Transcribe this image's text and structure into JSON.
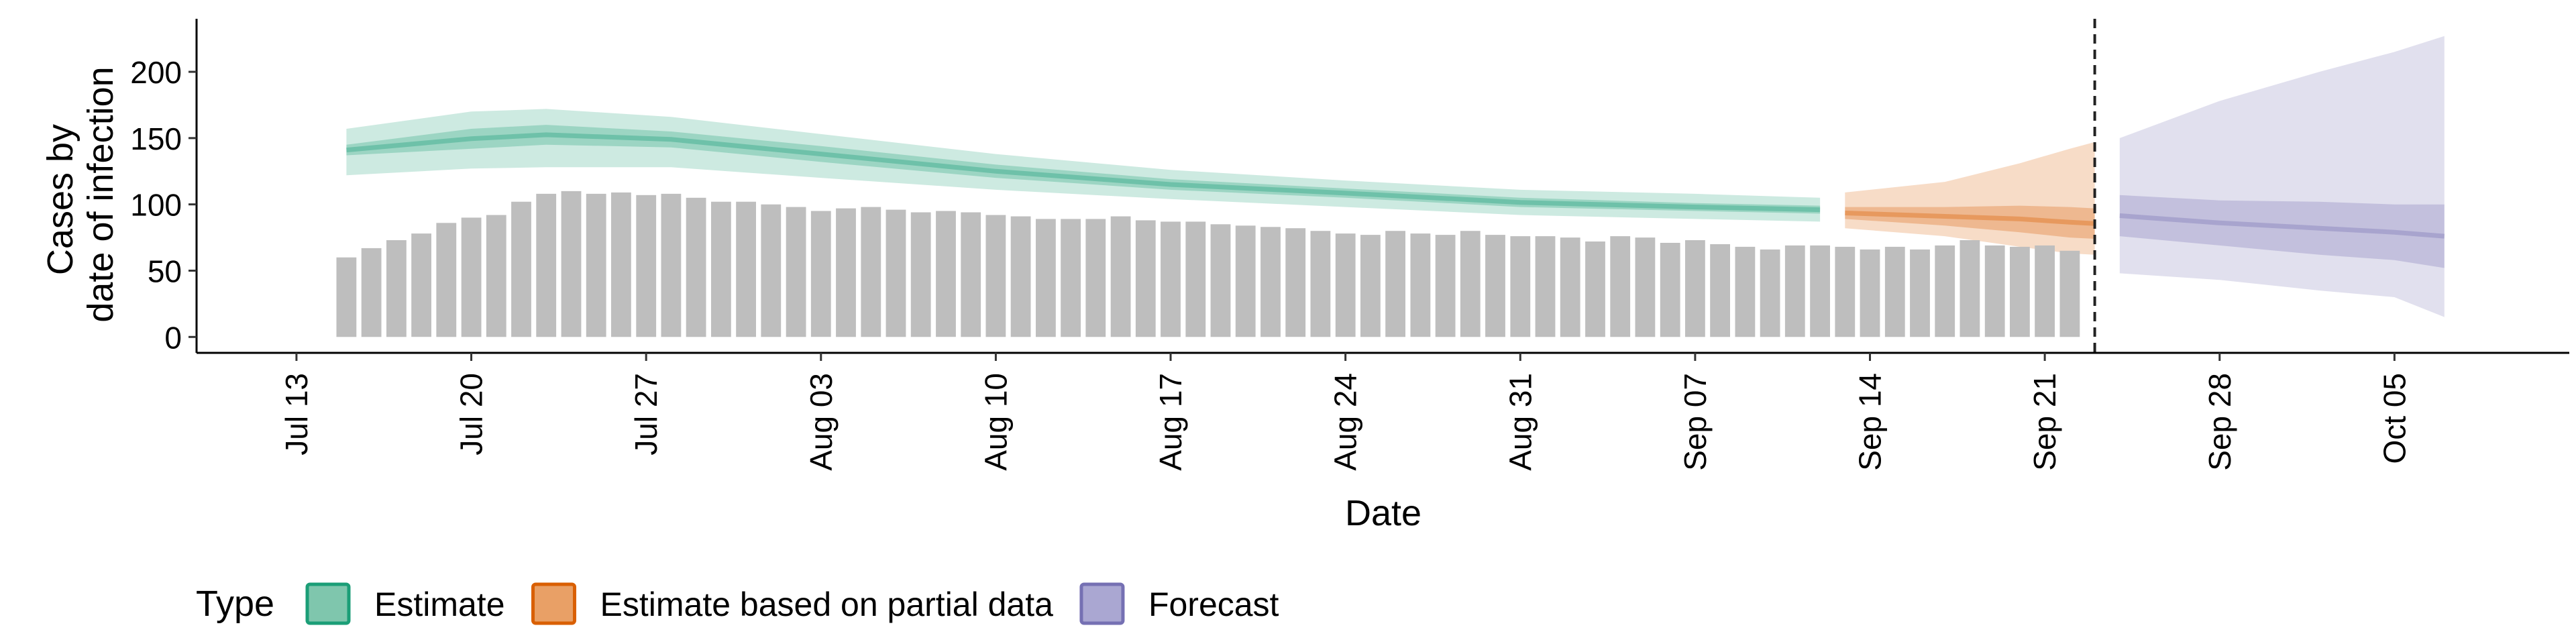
{
  "chart_data": {
    "type": "bar",
    "title": "",
    "xlabel": "Date",
    "ylabel_lines": [
      "Cases by",
      "date of infection"
    ],
    "y_ticks": [
      0,
      50,
      100,
      150,
      200
    ],
    "ylim": [
      -12,
      240
    ],
    "x_range": [
      "2020-07-09",
      "2020-10-12"
    ],
    "x_tick_labels": [
      {
        "date": "2020-07-13",
        "label": "Jul 13"
      },
      {
        "date": "2020-07-20",
        "label": "Jul 20"
      },
      {
        "date": "2020-07-27",
        "label": "Jul 27"
      },
      {
        "date": "2020-08-03",
        "label": "Aug 03"
      },
      {
        "date": "2020-08-10",
        "label": "Aug 10"
      },
      {
        "date": "2020-08-17",
        "label": "Aug 17"
      },
      {
        "date": "2020-08-24",
        "label": "Aug 24"
      },
      {
        "date": "2020-08-31",
        "label": "Aug 31"
      },
      {
        "date": "2020-09-07",
        "label": "Sep 07"
      },
      {
        "date": "2020-09-14",
        "label": "Sep 14"
      },
      {
        "date": "2020-09-21",
        "label": "Sep 21"
      },
      {
        "date": "2020-09-28",
        "label": "Sep 28"
      },
      {
        "date": "2020-10-05",
        "label": "Oct 05"
      }
    ],
    "bars": {
      "first_date": "2020-07-15",
      "color": "#bebebe",
      "values": [
        60,
        67,
        73,
        78,
        86,
        90,
        92,
        102,
        108,
        110,
        108,
        109,
        107,
        108,
        105,
        102,
        102,
        100,
        98,
        95,
        97,
        98,
        96,
        94,
        95,
        94,
        92,
        91,
        89,
        89,
        89,
        91,
        88,
        87,
        87,
        85,
        84,
        83,
        82,
        80,
        78,
        77,
        80,
        78,
        77,
        80,
        77,
        76,
        76,
        75,
        72,
        76,
        75,
        71,
        73,
        70,
        68,
        66,
        69,
        69,
        68,
        66,
        68,
        66,
        69,
        73,
        69,
        68,
        69,
        65
      ]
    },
    "bands": [
      {
        "type": "Estimate",
        "color": "#1b9e77",
        "points": [
          [
            "2020-07-15",
            122,
            137,
            145,
            157
          ],
          [
            "2020-07-20",
            127,
            142,
            157,
            170
          ],
          [
            "2020-07-23",
            128,
            145,
            160,
            172
          ],
          [
            "2020-07-28",
            128,
            143,
            155,
            166
          ],
          [
            "2020-08-03",
            120,
            132,
            144,
            153
          ],
          [
            "2020-08-10",
            111,
            120,
            130,
            138
          ],
          [
            "2020-08-17",
            104,
            111,
            119,
            126
          ],
          [
            "2020-08-24",
            98,
            105,
            112,
            118
          ],
          [
            "2020-08-31",
            92,
            98,
            105,
            111
          ],
          [
            "2020-09-07",
            89,
            95,
            101,
            108
          ],
          [
            "2020-09-12",
            87,
            93,
            99,
            105
          ]
        ]
      },
      {
        "type": "Estimate based on partial data",
        "color": "#d95f02",
        "points": [
          [
            "2020-09-13",
            82,
            89,
            98,
            109
          ],
          [
            "2020-09-17",
            76,
            84,
            98,
            117
          ],
          [
            "2020-09-20",
            68,
            79,
            99,
            131
          ],
          [
            "2020-09-22",
            63,
            75,
            98,
            142
          ],
          [
            "2020-09-23",
            62,
            74,
            97,
            147
          ]
        ]
      },
      {
        "type": "Forecast",
        "color": "#7570b3",
        "points": [
          [
            "2020-09-24",
            48,
            76,
            107,
            150
          ],
          [
            "2020-09-28",
            43,
            69,
            103,
            178
          ],
          [
            "2020-10-02",
            35,
            62,
            102,
            200
          ],
          [
            "2020-10-05",
            30,
            58,
            100,
            215
          ],
          [
            "2020-10-07",
            15,
            52,
            100,
            227
          ]
        ]
      }
    ],
    "forecast_start_line": "2020-09-23",
    "legend_position": "bottom",
    "legend": {
      "title": "Type",
      "items": [
        {
          "label": "Estimate",
          "fill": "#7fc6ad",
          "stroke": "#1b9e77"
        },
        {
          "label": "Estimate based on partial data",
          "fill": "#e9a066",
          "stroke": "#d95f02"
        },
        {
          "label": "Forecast",
          "fill": "#aaa7d2",
          "stroke": "#7570b3"
        }
      ]
    }
  }
}
